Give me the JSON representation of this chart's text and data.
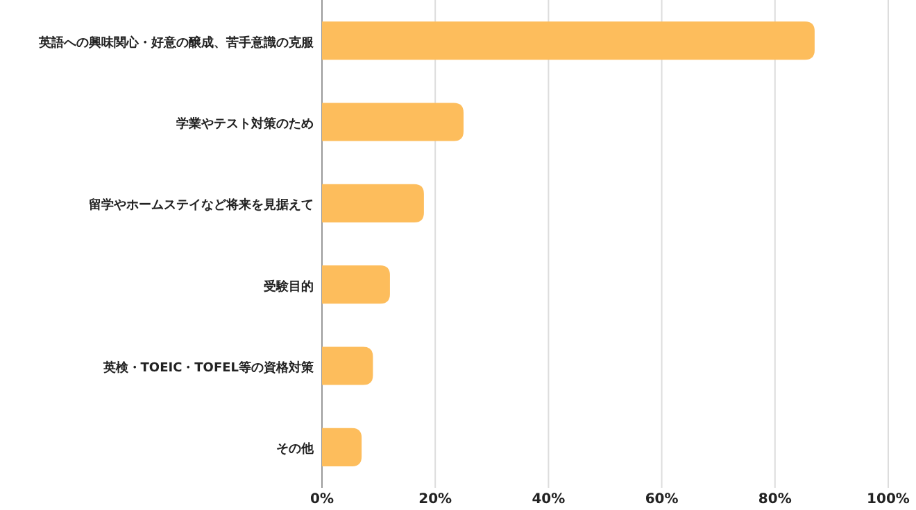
{
  "chart_data": {
    "type": "bar",
    "orientation": "horizontal",
    "categories": [
      "英語への興味関心・好意の醸成、苦手意識の克服",
      "学業やテスト対策のため",
      "留学やホームステイなど将来を見据えて",
      "受験目的",
      "英検・TOEIC・TOFEL等の資格対策",
      "その他"
    ],
    "values": [
      87,
      25,
      18,
      12,
      9,
      7
    ],
    "color": "#fdbd5c",
    "xlim": [
      0,
      100
    ],
    "xticks": [
      {
        "value": 0,
        "label": "0%"
      },
      {
        "value": 20,
        "label": "20%"
      },
      {
        "value": 40,
        "label": "40%"
      },
      {
        "value": 60,
        "label": "60%"
      },
      {
        "value": 80,
        "label": "80%"
      },
      {
        "value": 100,
        "label": "100%"
      }
    ],
    "grid": "x"
  }
}
